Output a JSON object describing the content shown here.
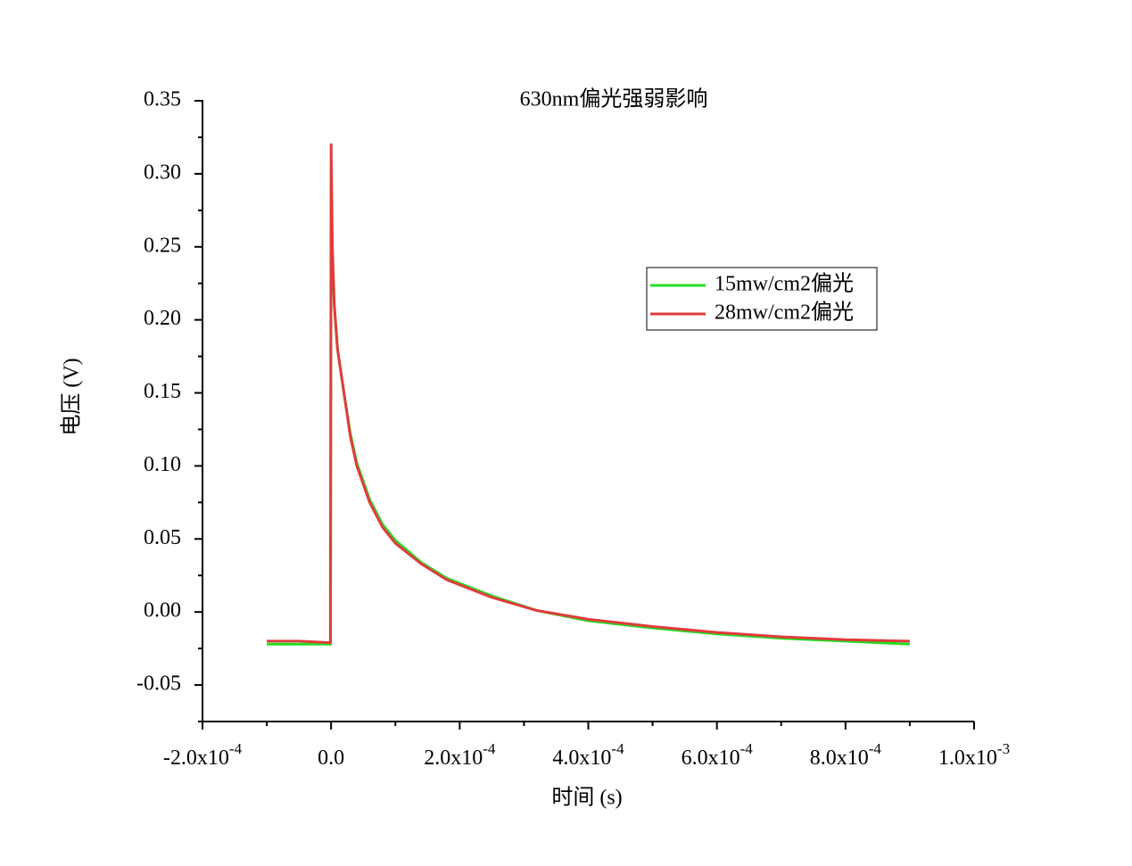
{
  "chart_data": {
    "type": "line",
    "title": "630nm偏光强弱影响",
    "xlabel": "时间 (s)",
    "ylabel": "电压 (V)",
    "x": [
      -0.0001,
      -5e-05,
      -1e-06,
      0,
      2e-06,
      5e-06,
      1e-05,
      2e-05,
      3e-05,
      4e-05,
      6e-05,
      8e-05,
      0.0001,
      0.00014,
      0.00018,
      0.00025,
      0.00032,
      0.0004,
      0.0005,
      0.0006,
      0.0007,
      0.0008,
      0.0009
    ],
    "series": [
      {
        "name": "15mw/cm2偏光",
        "color": "#22dd22",
        "values": [
          -0.022,
          -0.022,
          -0.022,
          0.26,
          0.24,
          0.21,
          0.18,
          0.15,
          0.122,
          0.102,
          0.077,
          0.06,
          0.049,
          0.034,
          0.023,
          0.011,
          0.001,
          -0.006,
          -0.011,
          -0.015,
          -0.018,
          -0.02,
          -0.022
        ]
      },
      {
        "name": "28mw/cm2偏光",
        "color": "#e03c3c",
        "values": [
          -0.02,
          -0.02,
          -0.021,
          0.32,
          0.25,
          0.21,
          0.18,
          0.15,
          0.12,
          0.1,
          0.075,
          0.058,
          0.047,
          0.033,
          0.022,
          0.01,
          0.001,
          -0.005,
          -0.01,
          -0.014,
          -0.017,
          -0.019,
          -0.02
        ]
      }
    ],
    "xlim": [
      -0.0002,
      0.001
    ],
    "xticks": [
      {
        "value": -0.0002,
        "label": "-2.0x10",
        "exponent": "-4"
      },
      {
        "value": 0,
        "label": "0.0"
      },
      {
        "value": 0.0002,
        "label": "2.0x10",
        "exponent": "-4"
      },
      {
        "value": 0.0004,
        "label": "4.0x10",
        "exponent": "-4"
      },
      {
        "value": 0.0006,
        "label": "6.0x10",
        "exponent": "-4"
      },
      {
        "value": 0.0008,
        "label": "8.0x10",
        "exponent": "-4"
      },
      {
        "value": 0.001,
        "label": "1.0x10",
        "exponent": "-3"
      }
    ],
    "xminorticks": [
      -0.0001,
      0.0001,
      0.0003,
      0.0005,
      0.0007,
      0.0009
    ],
    "ylim": [
      -0.075,
      0.35
    ],
    "yticks": [
      {
        "value": -0.05,
        "label": "-0.05"
      },
      {
        "value": 0,
        "label": "0.00"
      },
      {
        "value": 0.05,
        "label": "0.05"
      },
      {
        "value": 0.1,
        "label": "0.10"
      },
      {
        "value": 0.15,
        "label": "0.15"
      },
      {
        "value": 0.2,
        "label": "0.20"
      },
      {
        "value": 0.25,
        "label": "0.25"
      },
      {
        "value": 0.3,
        "label": "0.30"
      },
      {
        "value": 0.35,
        "label": "0.35"
      }
    ],
    "yminorticks": [
      -0.075,
      -0.025,
      0.025,
      0.075,
      0.125,
      0.175,
      0.225,
      0.275,
      0.325
    ],
    "legend": "upper-right",
    "grid": false
  }
}
